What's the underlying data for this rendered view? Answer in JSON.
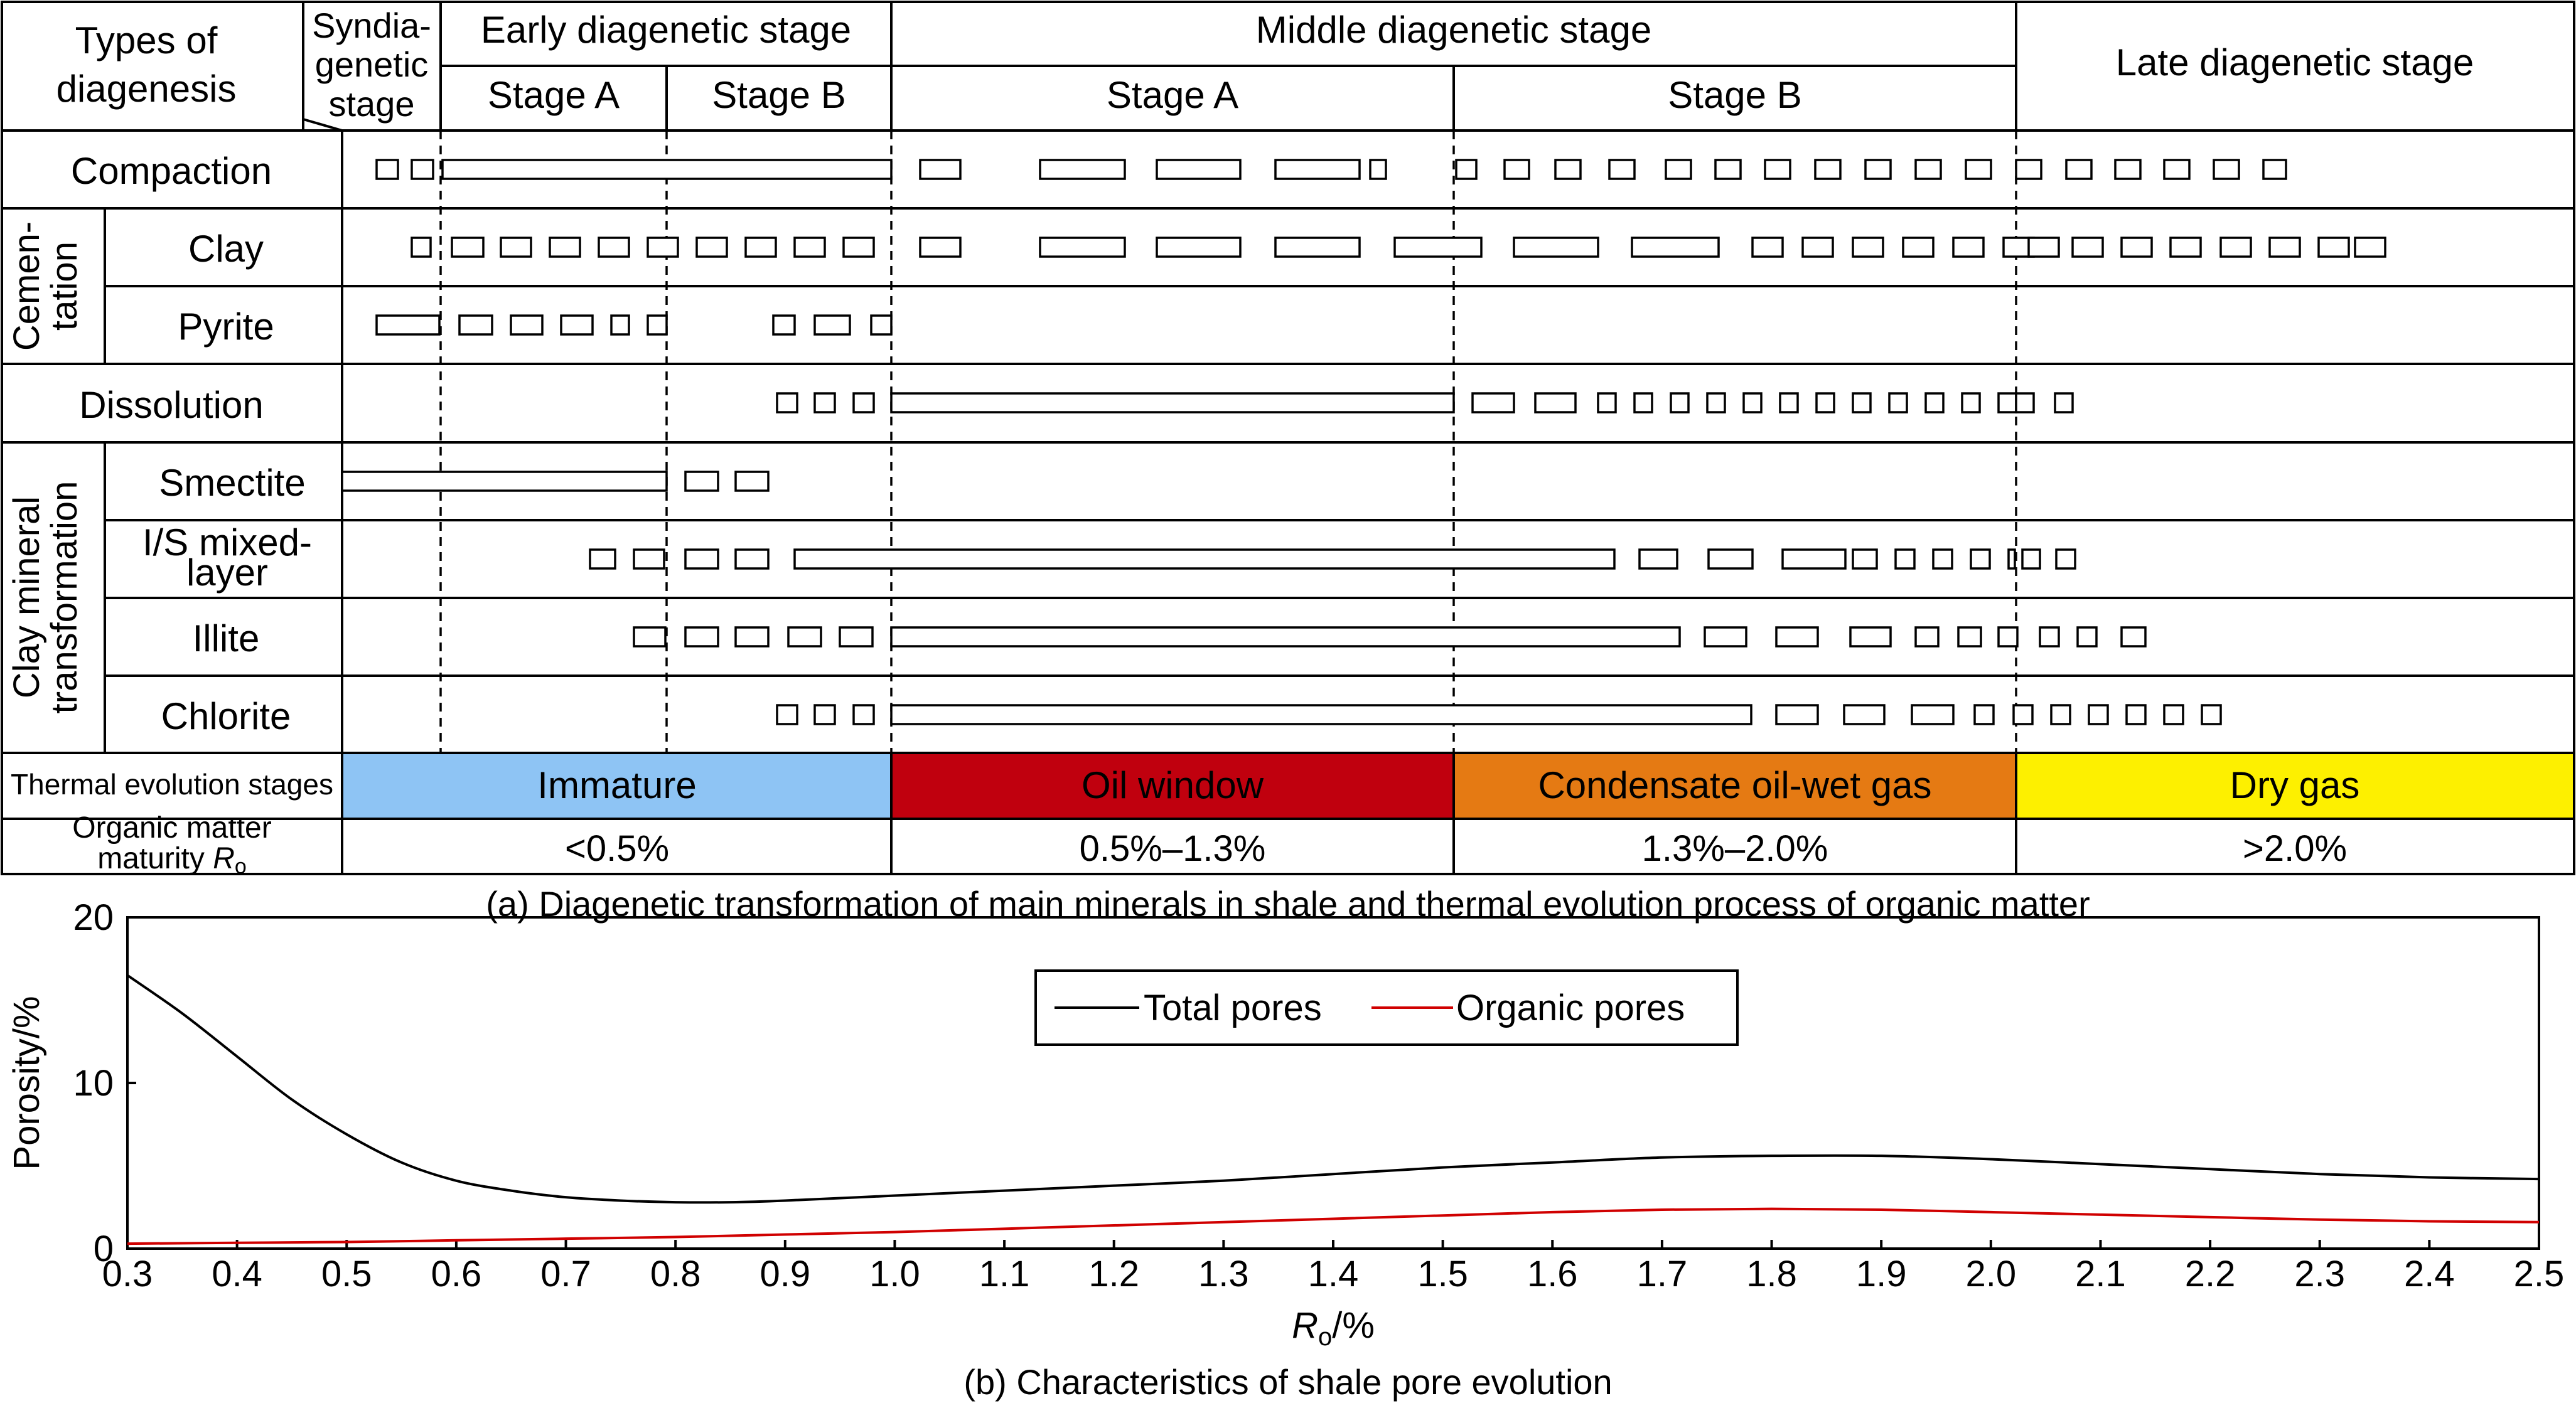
{
  "header": {
    "types_label": [
      "Types of",
      "diagenesis"
    ],
    "syndia_label": [
      "Syndia-",
      "genetic",
      "stage"
    ],
    "early_stage": "Early diagenetic stage",
    "middle_stage": "Middle diagenetic stage",
    "late_stage": "Late diagenetic stage",
    "stage_a": "Stage A",
    "stage_b": "Stage B"
  },
  "groups": {
    "cementation": [
      "Cemen-",
      "tation"
    ],
    "clay_transform": [
      "Clay mineral",
      "transformation"
    ]
  },
  "rows": [
    {
      "label": [
        "Compaction"
      ]
    },
    {
      "label": [
        "Clay"
      ]
    },
    {
      "label": [
        "Pyrite"
      ]
    },
    {
      "label": [
        "Dissolution"
      ]
    },
    {
      "label": [
        "Smectite"
      ]
    },
    {
      "label": [
        "I/S mixed-",
        "layer"
      ]
    },
    {
      "label": [
        "Illite"
      ]
    },
    {
      "label": [
        "Chlorite"
      ]
    }
  ],
  "thermal": {
    "label": "Thermal evolution stages",
    "stages": [
      {
        "name": "Immature",
        "color": "#8ec4f4"
      },
      {
        "name": "Oil window",
        "color": "#c0000e"
      },
      {
        "name": "Condensate oil-wet gas",
        "color": "#e57a13"
      },
      {
        "name": "Dry gas",
        "color": "#fdf000"
      }
    ]
  },
  "maturity": {
    "label_line1": "Organic matter",
    "label_line2_prefix": "maturity ",
    "label_var": "R",
    "label_sub": "o",
    "ranges": [
      "<0.5%",
      "0.5%–1.3%",
      "1.3%–2.0%",
      ">2.0%"
    ]
  },
  "caption_a": "(a) Diagenetic transformation of main minerals in shale and thermal evolution process of organic matter",
  "caption_b": "(b) Characteristics of shale pore evolution",
  "chart_data": {
    "type": "line",
    "xlabel_var": "R",
    "xlabel_sub": "o",
    "xlabel_unit": "/%",
    "ylabel": "Porosity/%",
    "xlim": [
      0.3,
      2.5
    ],
    "ylim": [
      0,
      20
    ],
    "xticks": [
      "0.3",
      "0.4",
      "0.5",
      "0.6",
      "0.7",
      "0.8",
      "0.9",
      "1.0",
      "1.1",
      "1.2",
      "1.3",
      "1.4",
      "1.5",
      "1.6",
      "1.7",
      "1.8",
      "1.9",
      "2.0",
      "2.1",
      "2.2",
      "2.3",
      "2.4",
      "2.5"
    ],
    "yticks": [
      "0",
      "10",
      "20"
    ],
    "legend_position": "top-center",
    "series": [
      {
        "name": "Total pores",
        "color": "#000000",
        "x": [
          0.3,
          0.35,
          0.4,
          0.45,
          0.5,
          0.55,
          0.6,
          0.65,
          0.7,
          0.75,
          0.8,
          0.85,
          0.9,
          1.0,
          1.1,
          1.2,
          1.3,
          1.4,
          1.5,
          1.6,
          1.7,
          1.8,
          1.9,
          2.0,
          2.1,
          2.2,
          2.3,
          2.4,
          2.5
        ],
        "y": [
          16.5,
          14.2,
          11.6,
          9.0,
          6.9,
          5.2,
          4.1,
          3.5,
          3.1,
          2.9,
          2.8,
          2.8,
          2.9,
          3.2,
          3.5,
          3.8,
          4.1,
          4.5,
          4.9,
          5.2,
          5.5,
          5.6,
          5.6,
          5.4,
          5.1,
          4.8,
          4.5,
          4.3,
          4.2
        ]
      },
      {
        "name": "Organic pores",
        "color": "#d00000",
        "x": [
          0.3,
          0.4,
          0.5,
          0.6,
          0.7,
          0.8,
          0.9,
          1.0,
          1.1,
          1.2,
          1.3,
          1.4,
          1.5,
          1.6,
          1.7,
          1.8,
          1.9,
          2.0,
          2.1,
          2.2,
          2.3,
          2.4,
          2.5
        ],
        "y": [
          0.3,
          0.35,
          0.4,
          0.5,
          0.6,
          0.7,
          0.85,
          1.0,
          1.2,
          1.4,
          1.6,
          1.8,
          2.0,
          2.2,
          2.35,
          2.4,
          2.35,
          2.2,
          2.05,
          1.9,
          1.75,
          1.65,
          1.6
        ]
      }
    ]
  }
}
